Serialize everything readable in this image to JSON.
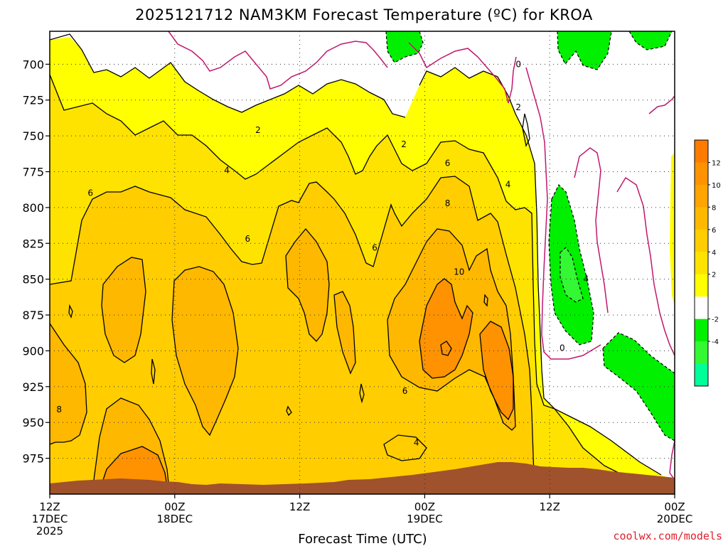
{
  "chart_data": {
    "type": "contour",
    "title": "2025121712 NAM3KM Forecast Temperature (ºC) for KROA",
    "xlabel": "Forecast Time (UTC)",
    "ylabel": "",
    "credit": "coolwx.com/models",
    "y_axis": {
      "scale": "pressure (reversed)",
      "ylim": [
        1000,
        677
      ],
      "ticks": [
        700,
        725,
        750,
        775,
        800,
        825,
        850,
        875,
        900,
        925,
        950,
        975
      ],
      "tick_labels": [
        "700",
        "725",
        "750",
        "775",
        "800",
        "825",
        "850",
        "875",
        "900",
        "925",
        "950",
        "975"
      ]
    },
    "x_axis": {
      "xlim_hours": [
        0,
        60
      ],
      "ticks_hours": [
        0,
        12,
        24,
        36,
        48,
        60
      ],
      "tick_labels": [
        [
          "12Z",
          "17DEC",
          "2025"
        ],
        [
          "00Z",
          "18DEC"
        ],
        [
          "12Z"
        ],
        [
          "00Z",
          "19DEC"
        ],
        [
          "12Z"
        ],
        [
          "00Z",
          "20DEC"
        ]
      ]
    },
    "grid": true,
    "colorbar": {
      "placement": "right",
      "levels": [
        14,
        12,
        10,
        8,
        6,
        4,
        2,
        0,
        -2,
        -4,
        -6
      ],
      "colors": [
        "#ff7b00",
        "#ff9200",
        "#ffa400",
        "#ffb800",
        "#ffcd00",
        "#ffe300",
        "#ffff00",
        "#ffffff",
        "#00f000",
        "#33f833",
        "#00ff99"
      ],
      "tick_labels": [
        "12",
        "10",
        "8",
        "6",
        "4",
        "2",
        "-2",
        "-4"
      ]
    },
    "contour_labels": [
      {
        "text": "0",
        "hour": 45.0,
        "hPa": 700
      },
      {
        "text": "2",
        "hour": 45.0,
        "hPa": 730
      },
      {
        "text": "2",
        "hour": 20.0,
        "hPa": 746
      },
      {
        "text": "2",
        "hour": 34.0,
        "hPa": 756
      },
      {
        "text": "4",
        "hour": 17.0,
        "hPa": 774
      },
      {
        "text": "4",
        "hour": 44.0,
        "hPa": 784
      },
      {
        "text": "6",
        "hour": 3.9,
        "hPa": 790
      },
      {
        "text": "6",
        "hour": 38.2,
        "hPa": 769
      },
      {
        "text": "8",
        "hour": 38.2,
        "hPa": 797
      },
      {
        "text": "6",
        "hour": 19.0,
        "hPa": 822
      },
      {
        "text": "6",
        "hour": 31.2,
        "hPa": 828
      },
      {
        "text": "10",
        "hour": 39.3,
        "hPa": 845
      },
      {
        "text": "4",
        "hour": 51.5,
        "hPa": 850
      },
      {
        "text": "0",
        "hour": 49.2,
        "hPa": 898
      },
      {
        "text": "6",
        "hour": 34.1,
        "hPa": 928
      },
      {
        "text": "8",
        "hour": 0.9,
        "hPa": 941
      },
      {
        "text": "4",
        "hour": 35.2,
        "hPa": 964
      }
    ],
    "color_legend_note": ""
  }
}
